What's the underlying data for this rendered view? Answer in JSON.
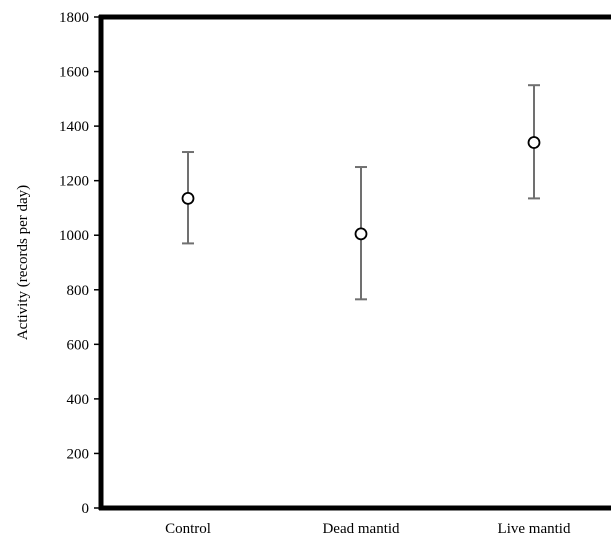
{
  "chart_data": {
    "type": "scatter",
    "title": "",
    "xlabel": "",
    "ylabel": "Activity (records per day)",
    "ylim": [
      0,
      1800
    ],
    "yticks": [
      0,
      200,
      400,
      600,
      800,
      1000,
      1200,
      1400,
      1600,
      1800
    ],
    "categories": [
      "Control",
      "Dead mantid",
      "Live mantid"
    ],
    "values": [
      1135,
      1005,
      1340
    ],
    "error_low": [
      970,
      765,
      1135
    ],
    "error_high": [
      1305,
      1250,
      1550
    ],
    "grid": false,
    "legend": "none",
    "colors": {
      "marker_fill": "#ffffff",
      "marker_stroke": "#000000",
      "error_bar": "#707070",
      "axis": "#000000"
    }
  }
}
